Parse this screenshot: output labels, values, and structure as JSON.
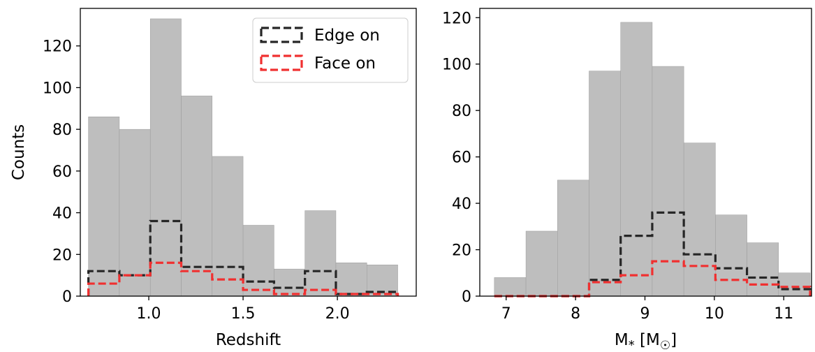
{
  "chart_data": [
    {
      "type": "bar",
      "xlabel": "Redshift",
      "ylabel": "Counts",
      "xlim": [
        0.637,
        2.418
      ],
      "ylim": [
        0,
        138
      ],
      "xticks": [
        1.0,
        1.5,
        2.0
      ],
      "xtick_labels": [
        "1.0",
        "1.5",
        "2.0"
      ],
      "yticks": [
        0,
        20,
        40,
        60,
        80,
        100,
        120
      ],
      "ytick_labels": [
        "0",
        "20",
        "40",
        "60",
        "80",
        "100",
        "120"
      ],
      "bin_edges": [
        0.68,
        0.844,
        1.008,
        1.172,
        1.336,
        1.5,
        1.664,
        1.828,
        1.992,
        2.156,
        2.32
      ],
      "series": [
        {
          "kind": "filled",
          "values": [
            86,
            80,
            133,
            96,
            67,
            34,
            13,
            41,
            16,
            15
          ]
        },
        {
          "name": "Edge on",
          "kind": "step",
          "values": [
            12,
            10,
            36,
            14,
            14,
            7,
            4,
            12,
            1,
            2
          ]
        },
        {
          "name": "Face on",
          "kind": "step",
          "values": [
            6,
            10,
            16,
            12,
            8,
            3,
            1,
            3,
            1,
            1
          ]
        }
      ],
      "legend": {
        "position": "top-right",
        "entries": [
          "Edge on",
          "Face on"
        ]
      },
      "grid": false
    },
    {
      "type": "bar",
      "xlabel": "M* [M☉]",
      "ylabel": "",
      "xlim": [
        6.62,
        11.4
      ],
      "ylim": [
        0,
        124
      ],
      "xticks": [
        7,
        8,
        9,
        10,
        11
      ],
      "xtick_labels": [
        "7",
        "8",
        "9",
        "10",
        "11"
      ],
      "yticks": [
        0,
        20,
        40,
        60,
        80,
        100,
        120
      ],
      "ytick_labels": [
        "0",
        "20",
        "40",
        "60",
        "80",
        "100",
        "120"
      ],
      "bin_edges": [
        6.83,
        7.285,
        7.74,
        8.195,
        8.65,
        9.105,
        9.56,
        10.015,
        10.47,
        10.925,
        11.38
      ],
      "series": [
        {
          "kind": "filled",
          "values": [
            8,
            28,
            50,
            97,
            118,
            99,
            66,
            35,
            23,
            10
          ]
        },
        {
          "name": "Edge on",
          "kind": "step",
          "values": [
            0,
            0,
            0,
            7,
            26,
            36,
            18,
            12,
            8,
            3
          ]
        },
        {
          "name": "Face on",
          "kind": "step",
          "values": [
            0,
            0,
            0,
            6,
            9,
            15,
            13,
            7,
            5,
            4
          ]
        }
      ],
      "grid": false
    }
  ],
  "colors": {
    "hist_fill": "#bebebe",
    "edge_on": "#262626",
    "face_on": "#f03030",
    "axis": "#000000"
  }
}
